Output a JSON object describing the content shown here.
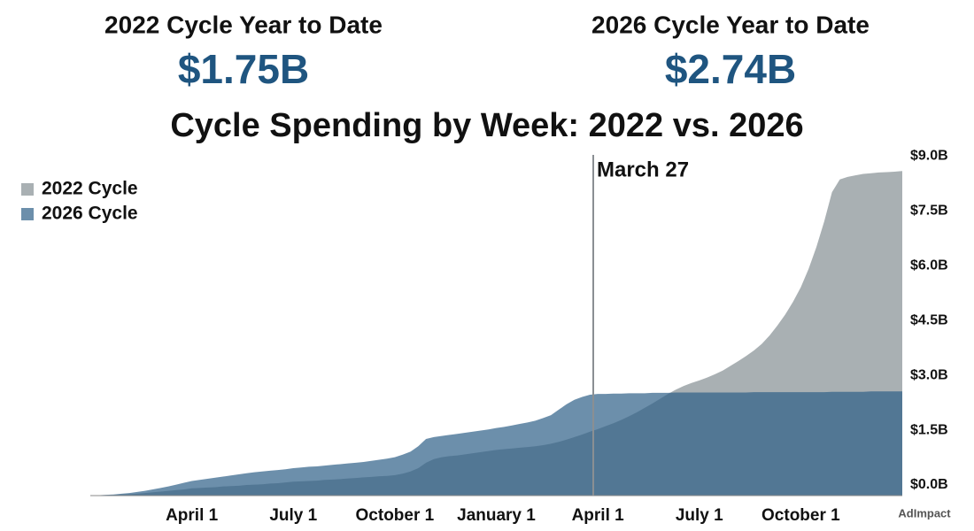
{
  "kpis": [
    {
      "label": "2022 Cycle Year to Date",
      "value": "$1.75B"
    },
    {
      "label": "2026 Cycle Year to Date",
      "value": "$2.74B"
    }
  ],
  "brand": "AdImpact",
  "chart_data": {
    "type": "area",
    "title": "Cycle Spending by Week: 2022 vs. 2026",
    "annotation": "March 27",
    "legend": "top-left",
    "categories": [
      null,
      null,
      null,
      null,
      null,
      null,
      null,
      null,
      null,
      null,
      null,
      null,
      null,
      "April 1",
      null,
      null,
      null,
      null,
      null,
      null,
      null,
      null,
      null,
      null,
      null,
      null,
      "July 1",
      null,
      null,
      null,
      null,
      null,
      null,
      null,
      null,
      null,
      null,
      null,
      null,
      "October 1",
      null,
      null,
      null,
      null,
      null,
      null,
      null,
      null,
      null,
      null,
      null,
      null,
      "January 1",
      null,
      null,
      null,
      null,
      null,
      null,
      null,
      null,
      null,
      null,
      null,
      null,
      "April 1",
      null,
      null,
      null,
      null,
      null,
      null,
      null,
      null,
      null,
      null,
      null,
      null,
      "July 1",
      null,
      null,
      null,
      null,
      null,
      null,
      null,
      null,
      null,
      null,
      null,
      null,
      "October 1",
      null,
      null,
      null,
      null,
      null,
      null,
      null,
      null,
      null,
      null,
      null,
      null,
      null
    ],
    "series": [
      {
        "name": "2022 Cycle",
        "color": "#a9b0b3",
        "values": [
          0,
          0.01,
          0.01,
          0.02,
          0.03,
          0.04,
          0.05,
          0.07,
          0.09,
          0.11,
          0.13,
          0.15,
          0.17,
          0.2,
          0.21,
          0.22,
          0.23,
          0.25,
          0.26,
          0.27,
          0.29,
          0.3,
          0.31,
          0.33,
          0.34,
          0.36,
          0.38,
          0.39,
          0.4,
          0.41,
          0.43,
          0.44,
          0.45,
          0.47,
          0.48,
          0.5,
          0.51,
          0.53,
          0.54,
          0.56,
          0.6,
          0.66,
          0.75,
          0.9,
          1.0,
          1.05,
          1.08,
          1.1,
          1.13,
          1.16,
          1.19,
          1.22,
          1.25,
          1.27,
          1.29,
          1.31,
          1.33,
          1.35,
          1.38,
          1.42,
          1.47,
          1.53,
          1.6,
          1.67,
          1.75,
          1.82,
          1.9,
          1.98,
          2.07,
          2.17,
          2.28,
          2.4,
          2.52,
          2.65,
          2.78,
          2.9,
          3.0,
          3.08,
          3.15,
          3.23,
          3.32,
          3.42,
          3.55,
          3.68,
          3.82,
          3.97,
          4.15,
          4.38,
          4.65,
          4.95,
          5.3,
          5.7,
          6.2,
          6.8,
          7.5,
          8.3,
          8.65,
          8.72,
          8.76,
          8.8,
          8.82,
          8.84,
          8.85,
          8.86,
          8.88
        ]
      },
      {
        "name": "2026 Cycle",
        "color": "#2d5f88",
        "values": [
          0,
          0.01,
          0.02,
          0.03,
          0.05,
          0.07,
          0.1,
          0.13,
          0.17,
          0.21,
          0.25,
          0.3,
          0.35,
          0.4,
          0.43,
          0.46,
          0.49,
          0.52,
          0.55,
          0.58,
          0.61,
          0.64,
          0.66,
          0.68,
          0.7,
          0.72,
          0.75,
          0.77,
          0.79,
          0.8,
          0.82,
          0.84,
          0.86,
          0.88,
          0.9,
          0.92,
          0.95,
          0.98,
          1.01,
          1.05,
          1.12,
          1.2,
          1.35,
          1.55,
          1.6,
          1.63,
          1.66,
          1.69,
          1.72,
          1.75,
          1.78,
          1.81,
          1.85,
          1.88,
          1.92,
          1.96,
          2.0,
          2.05,
          2.12,
          2.2,
          2.35,
          2.5,
          2.62,
          2.7,
          2.76,
          2.78,
          2.78,
          2.79,
          2.79,
          2.8,
          2.8,
          2.8,
          2.81,
          2.81,
          2.81,
          2.82,
          2.82,
          2.82,
          2.82,
          2.82,
          2.82,
          2.82,
          2.82,
          2.82,
          2.82,
          2.83,
          2.83,
          2.83,
          2.83,
          2.83,
          2.83,
          2.83,
          2.83,
          2.83,
          2.83,
          2.84,
          2.84,
          2.84,
          2.84,
          2.84,
          2.85,
          2.85,
          2.85,
          2.85,
          2.85
        ]
      }
    ],
    "ylim": [
      0,
      9.2
    ],
    "yticks": [
      {
        "value": 0,
        "label": "$0.0B"
      },
      {
        "value": 1.5,
        "label": "$1.5B"
      },
      {
        "value": 3,
        "label": "$3.0B"
      },
      {
        "value": 4.5,
        "label": "$4.5B"
      },
      {
        "value": 6,
        "label": "$6.0B"
      },
      {
        "value": 7.5,
        "label": "$7.5B"
      },
      {
        "value": 9,
        "label": "$9.0B"
      }
    ]
  }
}
